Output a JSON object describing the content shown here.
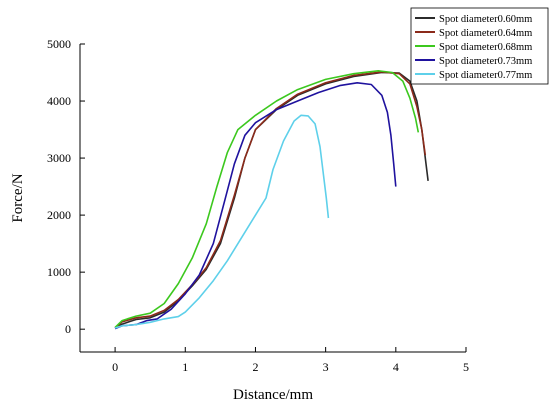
{
  "chart_data": {
    "type": "line",
    "title": "",
    "xlabel": "Distance/mm",
    "ylabel": "Force/N",
    "xlim": [
      -0.5,
      5
    ],
    "ylim": [
      -400,
      5000
    ],
    "x_ticks": [
      0,
      1,
      2,
      3,
      4,
      5
    ],
    "y_ticks": [
      0,
      1000,
      2000,
      3000,
      4000,
      5000
    ],
    "grid": false,
    "legend_position": "top-right",
    "series": [
      {
        "name": "Spot diameter0.60mm",
        "color": "#2b2b2b",
        "points": [
          [
            0,
            20
          ],
          [
            0.1,
            90
          ],
          [
            0.2,
            130
          ],
          [
            0.3,
            170
          ],
          [
            0.5,
            200
          ],
          [
            0.7,
            300
          ],
          [
            0.9,
            500
          ],
          [
            1.1,
            760
          ],
          [
            1.3,
            1050
          ],
          [
            1.5,
            1500
          ],
          [
            1.7,
            2300
          ],
          [
            1.85,
            3000
          ],
          [
            2.0,
            3500
          ],
          [
            2.3,
            3850
          ],
          [
            2.6,
            4100
          ],
          [
            3.0,
            4300
          ],
          [
            3.4,
            4430
          ],
          [
            3.8,
            4500
          ],
          [
            4.05,
            4490
          ],
          [
            4.2,
            4350
          ],
          [
            4.3,
            4000
          ],
          [
            4.37,
            3500
          ],
          [
            4.42,
            3000
          ],
          [
            4.46,
            2600
          ]
        ]
      },
      {
        "name": "Spot diameter0.64mm",
        "color": "#8b2a1a",
        "points": [
          [
            0,
            20
          ],
          [
            0.1,
            130
          ],
          [
            0.3,
            200
          ],
          [
            0.5,
            230
          ],
          [
            0.7,
            330
          ],
          [
            0.9,
            520
          ],
          [
            1.1,
            780
          ],
          [
            1.3,
            1080
          ],
          [
            1.5,
            1550
          ],
          [
            1.7,
            2350
          ],
          [
            1.85,
            3000
          ],
          [
            2.0,
            3500
          ],
          [
            2.3,
            3870
          ],
          [
            2.6,
            4120
          ],
          [
            3.0,
            4320
          ],
          [
            3.4,
            4450
          ],
          [
            3.8,
            4510
          ],
          [
            4.05,
            4480
          ],
          [
            4.2,
            4300
          ],
          [
            4.3,
            3900
          ],
          [
            4.37,
            3500
          ],
          [
            4.42,
            3050
          ]
        ]
      },
      {
        "name": "Spot diameter0.68mm",
        "color": "#3cc81e",
        "points": [
          [
            0,
            30
          ],
          [
            0.1,
            150
          ],
          [
            0.3,
            230
          ],
          [
            0.5,
            280
          ],
          [
            0.7,
            450
          ],
          [
            0.9,
            800
          ],
          [
            1.1,
            1250
          ],
          [
            1.3,
            1850
          ],
          [
            1.45,
            2500
          ],
          [
            1.6,
            3100
          ],
          [
            1.75,
            3500
          ],
          [
            2.0,
            3750
          ],
          [
            2.3,
            4000
          ],
          [
            2.6,
            4200
          ],
          [
            3.0,
            4380
          ],
          [
            3.4,
            4480
          ],
          [
            3.75,
            4530
          ],
          [
            3.95,
            4500
          ],
          [
            4.1,
            4350
          ],
          [
            4.2,
            4050
          ],
          [
            4.28,
            3700
          ],
          [
            4.32,
            3450
          ]
        ]
      },
      {
        "name": "Spot diameter0.73mm",
        "color": "#1f129e",
        "points": [
          [
            0,
            10
          ],
          [
            0.1,
            60
          ],
          [
            0.3,
            80
          ],
          [
            0.45,
            150
          ],
          [
            0.6,
            180
          ],
          [
            0.8,
            350
          ],
          [
            1.0,
            620
          ],
          [
            1.2,
            950
          ],
          [
            1.4,
            1500
          ],
          [
            1.55,
            2200
          ],
          [
            1.7,
            2900
          ],
          [
            1.85,
            3400
          ],
          [
            2.0,
            3620
          ],
          [
            2.3,
            3850
          ],
          [
            2.6,
            4000
          ],
          [
            2.9,
            4150
          ],
          [
            3.2,
            4270
          ],
          [
            3.45,
            4320
          ],
          [
            3.65,
            4290
          ],
          [
            3.8,
            4100
          ],
          [
            3.88,
            3800
          ],
          [
            3.93,
            3400
          ],
          [
            3.97,
            2900
          ],
          [
            4.0,
            2500
          ]
        ]
      },
      {
        "name": "Spot diameter0.77mm",
        "color": "#5ed0ea",
        "points": [
          [
            0,
            20
          ],
          [
            0.1,
            60
          ],
          [
            0.3,
            80
          ],
          [
            0.5,
            120
          ],
          [
            0.7,
            180
          ],
          [
            0.9,
            220
          ],
          [
            1.0,
            300
          ],
          [
            1.2,
            550
          ],
          [
            1.4,
            850
          ],
          [
            1.6,
            1200
          ],
          [
            1.8,
            1600
          ],
          [
            2.0,
            2000
          ],
          [
            2.15,
            2300
          ],
          [
            2.25,
            2800
          ],
          [
            2.4,
            3300
          ],
          [
            2.55,
            3650
          ],
          [
            2.65,
            3750
          ],
          [
            2.75,
            3740
          ],
          [
            2.85,
            3600
          ],
          [
            2.92,
            3200
          ],
          [
            2.97,
            2700
          ],
          [
            3.01,
            2300
          ],
          [
            3.04,
            1950
          ]
        ]
      }
    ]
  }
}
